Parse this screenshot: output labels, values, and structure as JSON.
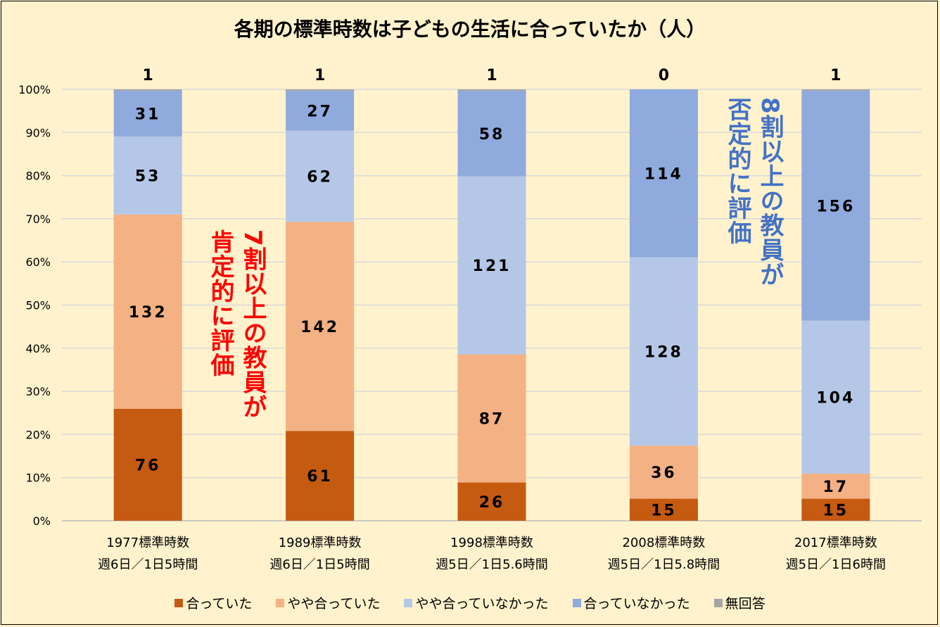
{
  "chart_data": {
    "type": "bar",
    "stacked": "percent",
    "title": "各期の標準時数は子どもの生活に合っていたか（人）",
    "categories": [
      {
        "line1": "1977標準時数",
        "line2": "週6日／1日5時間"
      },
      {
        "line1": "1989標準時数",
        "line2": "週6日／1日5時間"
      },
      {
        "line1": "1998標準時数",
        "line2": "週5日／1日5.6時間"
      },
      {
        "line1": "2008標準時数",
        "line2": "週5日／1日5.8時間"
      },
      {
        "line1": "2017標準時数",
        "line2": "週5日／1日6時間"
      }
    ],
    "series": [
      {
        "name": "合っていた",
        "color": "#C55A11",
        "values": [
          76,
          61,
          26,
          15,
          15
        ]
      },
      {
        "name": "やや合っていた",
        "color": "#F4B183",
        "values": [
          132,
          142,
          87,
          36,
          17
        ]
      },
      {
        "name": "やや合っていなかった",
        "color": "#B4C7E7",
        "values": [
          53,
          62,
          121,
          128,
          104
        ]
      },
      {
        "name": "合っていなかった",
        "color": "#8FAADC",
        "values": [
          31,
          27,
          58,
          114,
          156
        ]
      },
      {
        "name": "無回答",
        "color": "#A5A5A5",
        "values": [
          1,
          1,
          1,
          0,
          1
        ]
      }
    ],
    "yticks": [
      "0%",
      "10%",
      "20%",
      "30%",
      "40%",
      "50%",
      "60%",
      "70%",
      "80%",
      "90%",
      "100%"
    ],
    "ylim": [
      0,
      100
    ],
    "grid": true,
    "legend": "bottom",
    "annotations": {
      "positive": [
        "7割以上の教員が",
        "肯定的に評価"
      ],
      "negative": [
        "8割以上の教員が",
        "否定的に評価"
      ]
    }
  }
}
